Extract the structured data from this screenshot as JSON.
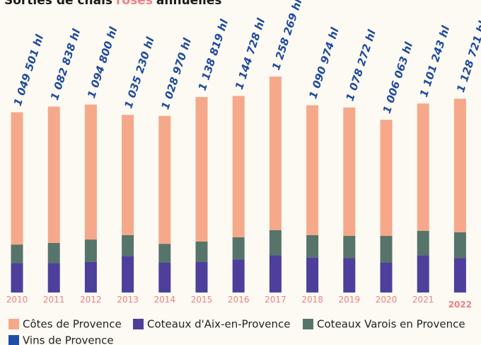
{
  "chart_data": {
    "type": "stacked_bar",
    "title_parts": [
      "Sorties de chais",
      "rosés",
      "annuelles"
    ],
    "title_colors": [
      "#1a1a1a",
      "#ee7f84",
      "#1a1a1a"
    ],
    "categories": [
      "2010",
      "2011",
      "2012",
      "2013",
      "2014",
      "2015",
      "2016",
      "2017",
      "2018",
      "2019",
      "2020",
      "2021",
      "2022"
    ],
    "series": [
      {
        "name": "Vins de Provence",
        "color": "#1f4ea8",
        "values": [
          3000,
          3000,
          3000,
          3000,
          3000,
          3000,
          3000,
          3000,
          3000,
          3000,
          3000,
          3000,
          3000
        ]
      },
      {
        "name": "Coteaux d'Aix-en-Provence",
        "color": "#4d3f9b",
        "values": [
          168000,
          168000,
          176000,
          210000,
          172000,
          176000,
          189000,
          214000,
          202000,
          197000,
          172000,
          214000,
          197000
        ]
      },
      {
        "name": "Coteaux Varois en Provence",
        "color": "#57746b",
        "values": [
          109000,
          118000,
          130000,
          122000,
          109000,
          118000,
          130000,
          147000,
          130000,
          130000,
          155000,
          143000,
          151000
        ]
      },
      {
        "name": "Côtes de Provence",
        "color": "#f5a98a",
        "values": [
          770000,
          794000,
          786000,
          700000,
          745000,
          842000,
          823000,
          894000,
          756000,
          748000,
          676000,
          741000,
          778000
        ]
      }
    ],
    "totals": [
      1049501,
      1082838,
      1094800,
      1035230,
      1028970,
      1138819,
      1144728,
      1258269,
      1090974,
      1078272,
      1006063,
      1101243,
      1128721
    ],
    "total_labels": [
      "1 049 501 hl",
      "1 082 838 hl",
      "1 094 800 hl",
      "1 035 230 hl",
      "1 028 970 hl",
      "1 138 819 hl",
      "1 144 728 hl",
      "1 258 269 hl",
      "1 090 974 hl",
      "1 078 272 hl",
      "1 006 063 hl",
      "1 101 243 hl",
      "1 128 721 hl"
    ],
    "legend_order": [
      3,
      1,
      2,
      0
    ]
  }
}
